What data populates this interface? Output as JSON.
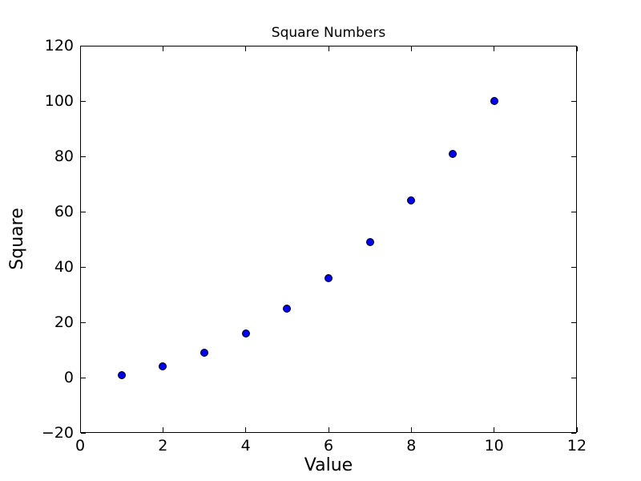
{
  "chart_data": {
    "type": "scatter",
    "title": "Square Numbers",
    "xlabel": "Value",
    "ylabel": "Square",
    "x": [
      1,
      2,
      3,
      4,
      5,
      6,
      7,
      8,
      9,
      10
    ],
    "y": [
      1,
      4,
      9,
      16,
      25,
      36,
      49,
      64,
      81,
      100
    ],
    "xlim": [
      0,
      12
    ],
    "ylim": [
      -20,
      120
    ],
    "xticks": [
      0,
      2,
      4,
      6,
      8,
      10,
      12
    ],
    "xtick_labels": [
      "0",
      "2",
      "4",
      "6",
      "8",
      "10",
      "12"
    ],
    "yticks": [
      -20,
      0,
      20,
      40,
      60,
      80,
      100,
      120
    ],
    "ytick_labels": [
      "−20",
      "0",
      "20",
      "40",
      "60",
      "80",
      "100",
      "120"
    ],
    "grid": false,
    "legend": null,
    "marker": {
      "shape": "circle",
      "fill_color": "#0000f0",
      "edge_color": "#000000"
    },
    "colors": {
      "background": "#ffffff",
      "spine": "#000000",
      "text": "#000000"
    }
  }
}
